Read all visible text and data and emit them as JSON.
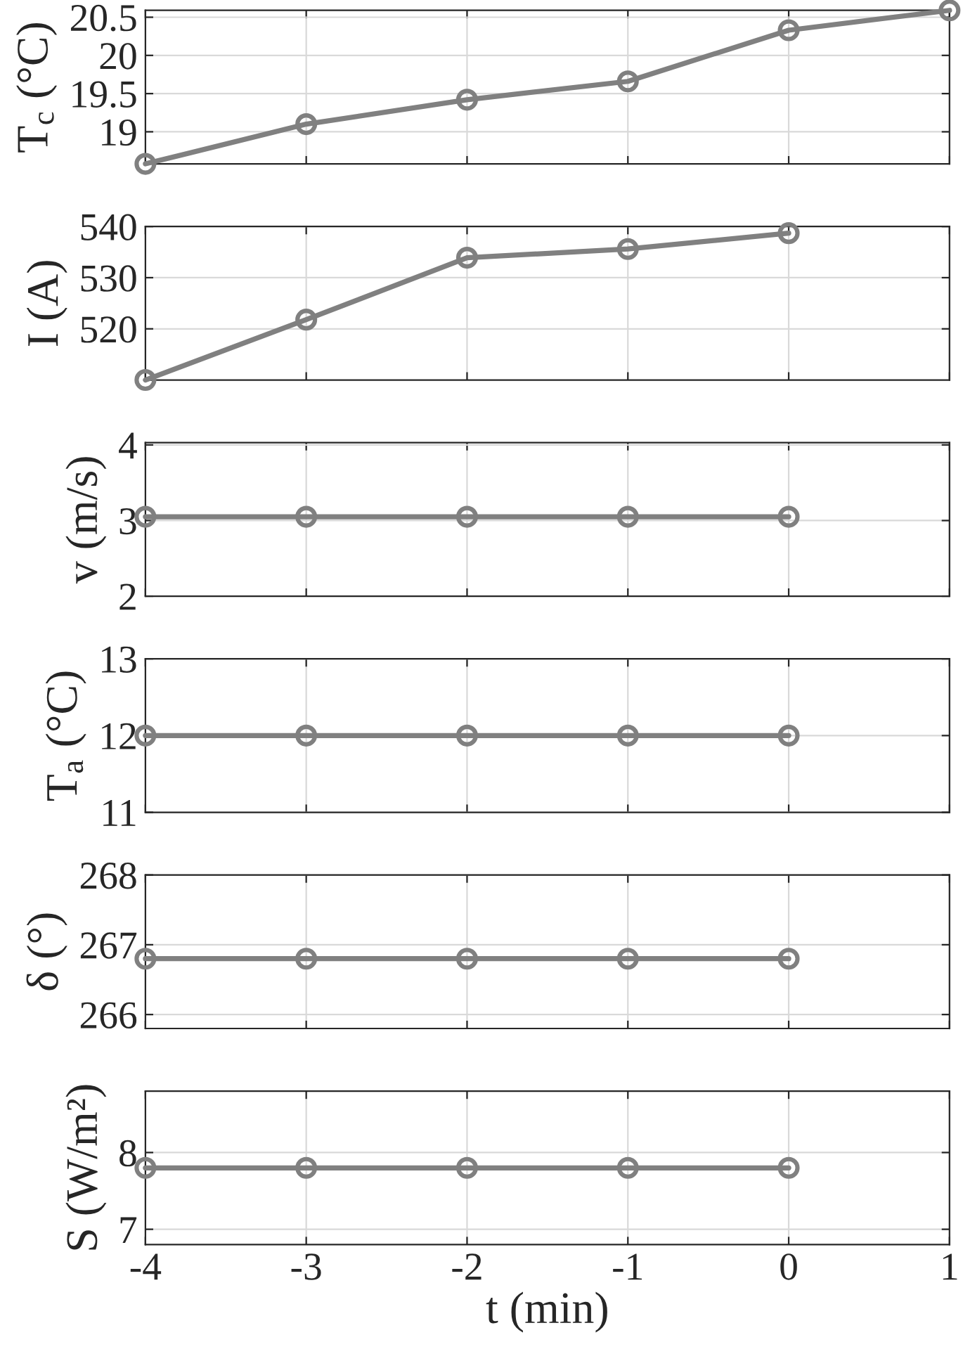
{
  "chart_data": [
    {
      "type": "line",
      "x": [
        -4,
        -3,
        -2,
        -1,
        0,
        1
      ],
      "values": [
        18.58,
        19.1,
        19.42,
        19.66,
        20.33,
        20.59
      ],
      "color": "#808080",
      "marker": "circle",
      "line_style": "solid",
      "ylabel": "T$_{c}$ (°C)",
      "xlim": [
        -4,
        1
      ],
      "xticks": [
        {
          "value": -4,
          "label": null
        },
        {
          "value": -3,
          "label": null
        },
        {
          "value": -2,
          "label": null
        },
        {
          "value": -1,
          "label": null
        },
        {
          "value": 0,
          "label": null
        },
        {
          "value": 1,
          "label": null
        }
      ],
      "ylim": [
        18.58,
        20.59
      ],
      "yticks": [
        19,
        19.5,
        20,
        20.5
      ],
      "grid": true,
      "tick_labels": "y"
    },
    {
      "type": "line",
      "x": [
        -4,
        -3,
        -2,
        -1,
        0
      ],
      "values": [
        510,
        521.8,
        533.9,
        535.6,
        538.7
      ],
      "color": "#808080",
      "marker": "circle",
      "line_style": "solid",
      "ylabel": "I (A)",
      "xlim": [
        -4,
        1
      ],
      "xticks": [
        {
          "value": -4,
          "label": null
        },
        {
          "value": -3,
          "label": null
        },
        {
          "value": -2,
          "label": null
        },
        {
          "value": -1,
          "label": null
        },
        {
          "value": 0,
          "label": null
        },
        {
          "value": 1,
          "label": null
        }
      ],
      "ylim": [
        510,
        540
      ],
      "yticks": [
        520,
        530,
        540
      ],
      "grid": true,
      "tick_labels": "y"
    },
    {
      "type": "line",
      "x": [
        -4,
        -3,
        -2,
        -1,
        0
      ],
      "values": [
        3.05,
        3.05,
        3.05,
        3.05,
        3.05
      ],
      "color": "#808080",
      "marker": "circle",
      "line_style": "solid",
      "ylabel": "v (m/s)",
      "xlim": [
        -4,
        1
      ],
      "xticks": [
        {
          "value": -4,
          "label": null
        },
        {
          "value": -3,
          "label": null
        },
        {
          "value": -2,
          "label": null
        },
        {
          "value": -1,
          "label": null
        },
        {
          "value": 0,
          "label": null
        },
        {
          "value": 1,
          "label": null
        }
      ],
      "ylim": [
        2,
        4.03
      ],
      "yticks": [
        2,
        3,
        4
      ],
      "grid": true,
      "tick_labels": "y"
    },
    {
      "type": "line",
      "x": [
        -4,
        -3,
        -2,
        -1,
        0
      ],
      "values": [
        12,
        12,
        12,
        12,
        12
      ],
      "color": "#808080",
      "marker": "circle",
      "line_style": "solid",
      "ylabel": "T$_{a}$ (°C)",
      "xlim": [
        -4,
        1
      ],
      "xticks": [
        {
          "value": -4,
          "label": null
        },
        {
          "value": -3,
          "label": null
        },
        {
          "value": -2,
          "label": null
        },
        {
          "value": -1,
          "label": null
        },
        {
          "value": 0,
          "label": null
        },
        {
          "value": 1,
          "label": null
        }
      ],
      "ylim": [
        11,
        13
      ],
      "yticks": [
        11,
        12,
        13
      ],
      "grid": true,
      "tick_labels": "y"
    },
    {
      "type": "line",
      "x": [
        -4,
        -3,
        -2,
        -1,
        0
      ],
      "values": [
        266.8,
        266.8,
        266.8,
        266.8,
        266.8
      ],
      "color": "#808080",
      "marker": "circle",
      "line_style": "solid",
      "ylabel": "δ (°)",
      "xlim": [
        -4,
        1
      ],
      "xticks": [
        {
          "value": -4,
          "label": null
        },
        {
          "value": -3,
          "label": null
        },
        {
          "value": -2,
          "label": null
        },
        {
          "value": -1,
          "label": null
        },
        {
          "value": 0,
          "label": null
        },
        {
          "value": 1,
          "label": null
        }
      ],
      "ylim": [
        265.8,
        268
      ],
      "yticks": [
        266,
        267,
        268
      ],
      "grid": true,
      "tick_labels": "y"
    },
    {
      "type": "line",
      "x": [
        -4,
        -3,
        -2,
        -1,
        0
      ],
      "values": [
        7.8,
        7.8,
        7.8,
        7.8,
        7.8
      ],
      "color": "#808080",
      "marker": "circle",
      "line_style": "solid",
      "ylabel": "S (W/m²)",
      "xlabel": "t (min)",
      "xlim": [
        -4,
        1
      ],
      "xticks": [
        {
          "value": -4,
          "label": "-4"
        },
        {
          "value": -3,
          "label": "-3"
        },
        {
          "value": -2,
          "label": "-2"
        },
        {
          "value": -1,
          "label": "-1"
        },
        {
          "value": 0,
          "label": "0"
        },
        {
          "value": 1,
          "label": "1"
        }
      ],
      "ylim": [
        6.8,
        8.8
      ],
      "yticks": [
        7,
        8
      ],
      "grid": true
    }
  ]
}
